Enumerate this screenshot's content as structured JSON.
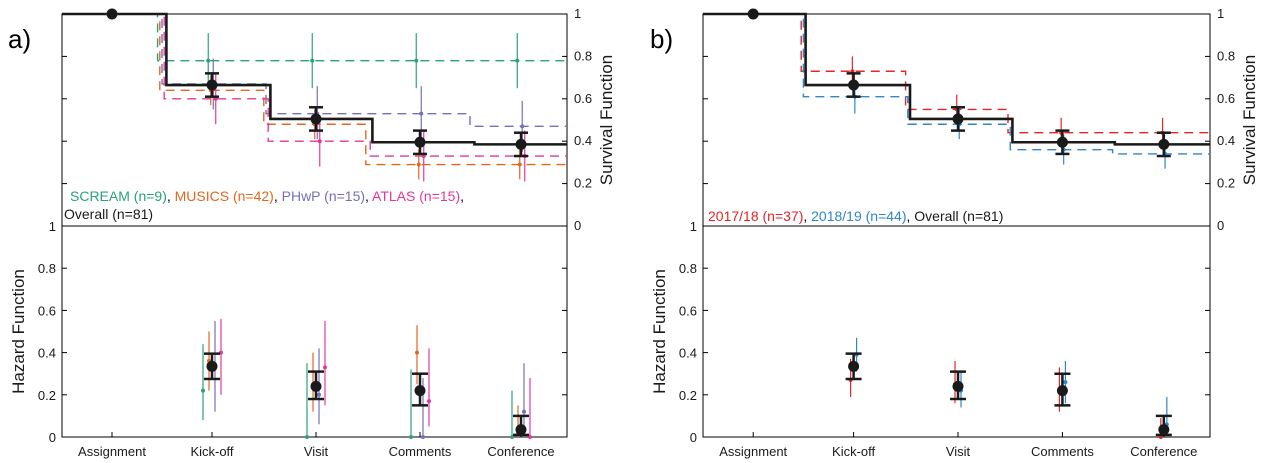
{
  "colors": {
    "overall": "#1a1a1a",
    "scream": "#2aa27a",
    "musics": "#e0681f",
    "phwp": "#7670b8",
    "atlas": "#e2389a",
    "y2017": "#e82424",
    "y2018": "#2f86c9"
  },
  "categories": [
    "Assignment",
    "Kick-off",
    "Visit",
    "Comments",
    "Conference"
  ],
  "panels": [
    {
      "label": "a)",
      "legend_line1": [
        {
          "key": "scream",
          "text": "SCREAM (n=9)"
        },
        {
          "sep": ", "
        },
        {
          "key": "musics",
          "text": "MUSICS (n=42)"
        },
        {
          "sep": ", "
        },
        {
          "key": "phwp",
          "text": "PHwP (n=15)"
        },
        {
          "sep": ", "
        },
        {
          "key": "atlas",
          "text": "ATLAS (n=15)"
        },
        {
          "sep": ","
        }
      ],
      "legend_line2": [
        {
          "key": "overall",
          "text": "Overall (n=81)"
        }
      ]
    },
    {
      "label": "b)",
      "legend_line1": [
        {
          "key": "y2017",
          "text": "2017/18 (n=37)"
        },
        {
          "sep": ", "
        },
        {
          "key": "y2018",
          "text": "2018/19 (n=44)"
        },
        {
          "sep": ", "
        },
        {
          "key": "overall",
          "text": "Overall (n=81)"
        }
      ],
      "legend_line2": []
    }
  ],
  "chart_data": [
    {
      "panel": "a",
      "type": "line",
      "subplot": "survival",
      "ylabel": "Survival Function",
      "ylim": [
        0,
        1
      ],
      "yticks": [
        "0",
        "0.2",
        "0.4",
        "0.6",
        "0.8",
        "1"
      ],
      "y_axis_side": "right",
      "categories": [
        "Assignment",
        "Kick-off",
        "Visit",
        "Comments",
        "Conference"
      ],
      "series": [
        {
          "name": "SCREAM (n=9)",
          "key": "scream",
          "style": "dashed",
          "values": [
            1.0,
            0.78,
            0.78,
            0.78,
            0.78
          ],
          "ci": [
            [
              1,
              1
            ],
            [
              0.65,
              0.91
            ],
            [
              0.65,
              0.91
            ],
            [
              0.65,
              0.91
            ],
            [
              0.65,
              0.91
            ]
          ]
        },
        {
          "name": "MUSICS (n=42)",
          "key": "musics",
          "style": "dashed",
          "values": [
            1.0,
            0.64,
            0.48,
            0.29,
            0.29
          ],
          "ci": [
            [
              1,
              1
            ],
            [
              0.57,
              0.71
            ],
            [
              0.41,
              0.55
            ],
            [
              0.22,
              0.36
            ],
            [
              0.22,
              0.36
            ]
          ]
        },
        {
          "name": "PHwP (n=15)",
          "key": "phwp",
          "style": "dashed",
          "values": [
            1.0,
            0.67,
            0.53,
            0.53,
            0.47
          ],
          "ci": [
            [
              1,
              1
            ],
            [
              0.55,
              0.79
            ],
            [
              0.41,
              0.66
            ],
            [
              0.41,
              0.66
            ],
            [
              0.35,
              0.59
            ]
          ]
        },
        {
          "name": "ATLAS (n=15)",
          "key": "atlas",
          "style": "dashed",
          "values": [
            1.0,
            0.6,
            0.4,
            0.33,
            0.33
          ],
          "ci": [
            [
              1,
              1
            ],
            [
              0.48,
              0.72
            ],
            [
              0.28,
              0.52
            ],
            [
              0.21,
              0.45
            ],
            [
              0.21,
              0.45
            ]
          ]
        },
        {
          "name": "Overall (n=81)",
          "key": "overall",
          "style": "solid",
          "values": [
            1.0,
            0.665,
            0.505,
            0.395,
            0.385
          ],
          "ci": [
            [
              1,
              1
            ],
            [
              0.61,
              0.72
            ],
            [
              0.45,
              0.56
            ],
            [
              0.34,
              0.45
            ],
            [
              0.33,
              0.44
            ]
          ]
        }
      ]
    },
    {
      "panel": "a",
      "type": "scatter",
      "subplot": "hazard",
      "ylabel": "Hazard Function",
      "ylim": [
        0,
        1
      ],
      "yticks": [
        "0",
        "0.2",
        "0.4",
        "0.6",
        "0.8",
        "1"
      ],
      "y_axis_side": "left",
      "categories": [
        "Assignment",
        "Kick-off",
        "Visit",
        "Comments",
        "Conference"
      ],
      "series": [
        {
          "key": "scream",
          "values": [
            null,
            0.22,
            0.0,
            0.0,
            0.0
          ],
          "ci": [
            null,
            [
              0.08,
              0.44
            ],
            [
              0,
              0.35
            ],
            [
              0,
              0.32
            ],
            [
              0,
              0.22
            ]
          ]
        },
        {
          "key": "musics",
          "values": [
            null,
            0.36,
            0.25,
            0.4,
            0.02
          ],
          "ci": [
            null,
            [
              0.22,
              0.5
            ],
            [
              0.12,
              0.4
            ],
            [
              0.25,
              0.53
            ],
            [
              0,
              0.15
            ]
          ]
        },
        {
          "key": "phwp",
          "values": [
            null,
            0.33,
            0.2,
            0.0,
            0.12
          ],
          "ci": [
            null,
            [
              0.12,
              0.55
            ],
            [
              0.06,
              0.42
            ],
            [
              0,
              0.28
            ],
            [
              0,
              0.35
            ]
          ]
        },
        {
          "key": "atlas",
          "values": [
            null,
            0.4,
            0.33,
            0.17,
            0.0
          ],
          "ci": [
            null,
            [
              0.2,
              0.56
            ],
            [
              0.15,
              0.55
            ],
            [
              0.05,
              0.42
            ],
            [
              0,
              0.28
            ]
          ]
        },
        {
          "key": "overall",
          "values": [
            null,
            0.335,
            0.24,
            0.22,
            0.035
          ],
          "ci": [
            null,
            [
              0.275,
              0.395
            ],
            [
              0.18,
              0.31
            ],
            [
              0.15,
              0.3
            ],
            [
              0.01,
              0.1
            ]
          ]
        }
      ]
    },
    {
      "panel": "b",
      "type": "line",
      "subplot": "survival",
      "ylabel": "Survival Function",
      "ylim": [
        0,
        1
      ],
      "yticks": [
        "0",
        "0.2",
        "0.4",
        "0.6",
        "0.8",
        "1"
      ],
      "y_axis_side": "right",
      "categories": [
        "Assignment",
        "Kick-off",
        "Visit",
        "Comments",
        "Conference"
      ],
      "series": [
        {
          "name": "2017/18 (n=37)",
          "key": "y2017",
          "style": "dashed",
          "values": [
            1.0,
            0.73,
            0.55,
            0.44,
            0.44
          ],
          "ci": [
            [
              1,
              1
            ],
            [
              0.67,
              0.8
            ],
            [
              0.48,
              0.62
            ],
            [
              0.37,
              0.51
            ],
            [
              0.37,
              0.51
            ]
          ]
        },
        {
          "name": "2018/19 (n=44)",
          "key": "y2018",
          "style": "dashed",
          "values": [
            1.0,
            0.61,
            0.48,
            0.36,
            0.34
          ],
          "ci": [
            [
              1,
              1
            ],
            [
              0.53,
              0.68
            ],
            [
              0.41,
              0.55
            ],
            [
              0.29,
              0.43
            ],
            [
              0.27,
              0.41
            ]
          ]
        },
        {
          "name": "Overall (n=81)",
          "key": "overall",
          "style": "solid",
          "values": [
            1.0,
            0.665,
            0.505,
            0.395,
            0.385
          ],
          "ci": [
            [
              1,
              1
            ],
            [
              0.61,
              0.72
            ],
            [
              0.45,
              0.56
            ],
            [
              0.34,
              0.45
            ],
            [
              0.33,
              0.44
            ]
          ]
        }
      ]
    },
    {
      "panel": "b",
      "type": "scatter",
      "subplot": "hazard",
      "ylabel": "Hazard Function",
      "ylim": [
        0,
        1
      ],
      "yticks": [
        "0",
        "0.2",
        "0.4",
        "0.6",
        "0.8",
        "1"
      ],
      "y_axis_side": "left",
      "categories": [
        "Assignment",
        "Kick-off",
        "Visit",
        "Comments",
        "Conference"
      ],
      "series": [
        {
          "key": "y2017",
          "values": [
            null,
            0.27,
            0.25,
            0.22,
            0.0
          ],
          "ci": [
            null,
            [
              0.19,
              0.37
            ],
            [
              0.16,
              0.36
            ],
            [
              0.12,
              0.33
            ],
            [
              0,
              0.09
            ]
          ]
        },
        {
          "key": "y2018",
          "values": [
            null,
            0.39,
            0.22,
            0.26,
            0.06
          ],
          "ci": [
            null,
            [
              0.31,
              0.47
            ],
            [
              0.14,
              0.31
            ],
            [
              0.16,
              0.36
            ],
            [
              0.01,
              0.19
            ]
          ]
        },
        {
          "key": "overall",
          "values": [
            null,
            0.335,
            0.24,
            0.22,
            0.035
          ],
          "ci": [
            null,
            [
              0.275,
              0.395
            ],
            [
              0.18,
              0.31
            ],
            [
              0.15,
              0.3
            ],
            [
              0.01,
              0.1
            ]
          ]
        }
      ]
    }
  ]
}
